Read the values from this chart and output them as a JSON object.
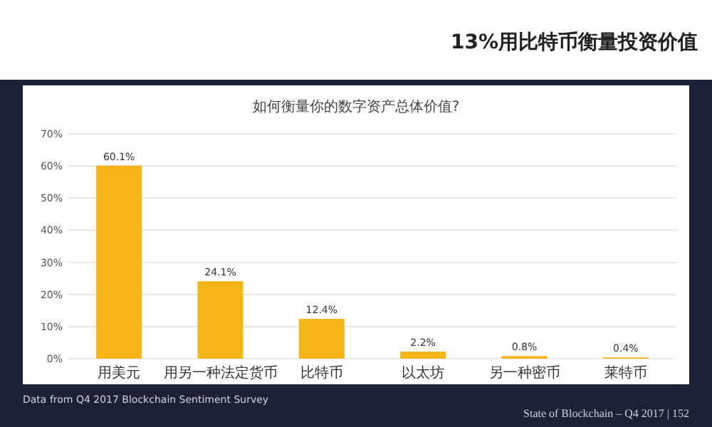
{
  "chart_data": {
    "type": "bar",
    "title": "13%用比特币衡量投资价值",
    "subtitle": "如何衡量你的数字资产总体价值?",
    "categories": [
      "用美元",
      "用另一种法定货币",
      "比特币",
      "以太坊",
      "另一种密币",
      "莱特币"
    ],
    "values": [
      60.1,
      24.1,
      12.4,
      2.2,
      0.8,
      0.4
    ],
    "value_labels": [
      "60.1%",
      "24.1%",
      "12.4%",
      "2.2%",
      "0.8%",
      "0.4%"
    ],
    "color": "#f5b516",
    "ylim": [
      0,
      70
    ],
    "yticks": [
      {
        "value": 0,
        "label": "0%"
      },
      {
        "value": 10,
        "label": "10%"
      },
      {
        "value": 20,
        "label": "20%"
      },
      {
        "value": 30,
        "label": "30%"
      },
      {
        "value": 40,
        "label": "40%"
      },
      {
        "value": 50,
        "label": "50%"
      },
      {
        "value": 60,
        "label": "60%"
      },
      {
        "value": 70,
        "label": "70%"
      }
    ],
    "grid": "y",
    "annotations": [
      "Data from Q4 2017 Blockchain Sentiment Survey",
      "State of Blockchain – Q4 2017 | 152"
    ]
  }
}
